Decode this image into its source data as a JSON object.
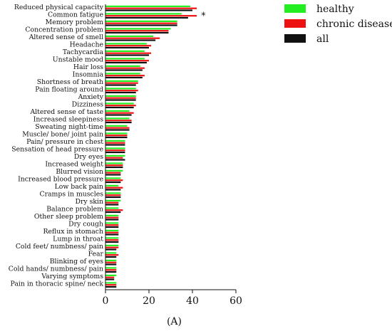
{
  "chart_data": {
    "type": "bar",
    "orientation": "horizontal",
    "categories": [
      "Reduced physical capacity",
      "Common fatigue",
      "Memory problem",
      "Concentration problem",
      "Altered sense of smell",
      "Headache",
      "Tachycardia",
      "Unstable mood",
      "Hair loss",
      "Insomnia",
      "Shortness of breath",
      "Pain floating around",
      "Anxiety",
      "Dizziness",
      "Altered sense of taste",
      "Increased sleepiness",
      "Sweating night-time",
      "Muscle/ bone/ joint pain",
      "Pain/ pressure in chest",
      "Sensation of head pressure",
      "Dry eyes",
      "Increased weight",
      "Blurred vision",
      "Increased blood pressure",
      "Low back pain",
      "Cramps in muscles",
      "Dry skin",
      "Balance problem",
      "Other sleep problem",
      "Dry cough",
      "Reflux in stomach",
      "Lump in throat",
      "Cold feet/ numbness/ pain",
      "Fear",
      "Blinking of eyes",
      "Cold hands/ numbness/ pain",
      "Varying symptoms",
      "Pain in thoracic spine/ neck"
    ],
    "series": [
      {
        "name": "healthy",
        "color": "#22ee22",
        "values": [
          39,
          35,
          33,
          30,
          22,
          19,
          18,
          18,
          16,
          16,
          15,
          14,
          14,
          13,
          11,
          11,
          10,
          10,
          9,
          9,
          9,
          8,
          8,
          7,
          6,
          7,
          7,
          6,
          6,
          6,
          6,
          6,
          6,
          5,
          5,
          5,
          5,
          5
        ]
      },
      {
        "name": "chronic disease",
        "color": "#ee1111",
        "values": [
          42,
          42,
          33,
          29,
          25,
          21,
          21,
          20,
          18,
          18,
          15,
          15,
          14,
          14,
          13,
          12,
          11,
          10,
          9,
          9,
          8,
          8,
          7,
          8,
          8,
          7,
          6,
          8,
          6,
          6,
          6,
          6,
          6,
          6,
          5,
          5,
          4,
          5
        ]
      },
      {
        "name": "all",
        "color": "#111111",
        "values": [
          40,
          38,
          33,
          29,
          23,
          20,
          20,
          19,
          17,
          17,
          14,
          14,
          14,
          13,
          12,
          12,
          11,
          10,
          9,
          9,
          9,
          8,
          7,
          7,
          7,
          7,
          6,
          7,
          6,
          6,
          6,
          6,
          5,
          5,
          5,
          5,
          4,
          5
        ]
      }
    ],
    "xlim": [
      0,
      60
    ],
    "xticks": [
      0,
      20,
      40,
      60
    ],
    "xlabel": "",
    "ylabel": "",
    "legend": {
      "position": "top-right",
      "entries": [
        "healthy",
        "chronic disease",
        "all"
      ]
    },
    "annotation": "*",
    "panel_label": "(A)",
    "grid": false
  }
}
